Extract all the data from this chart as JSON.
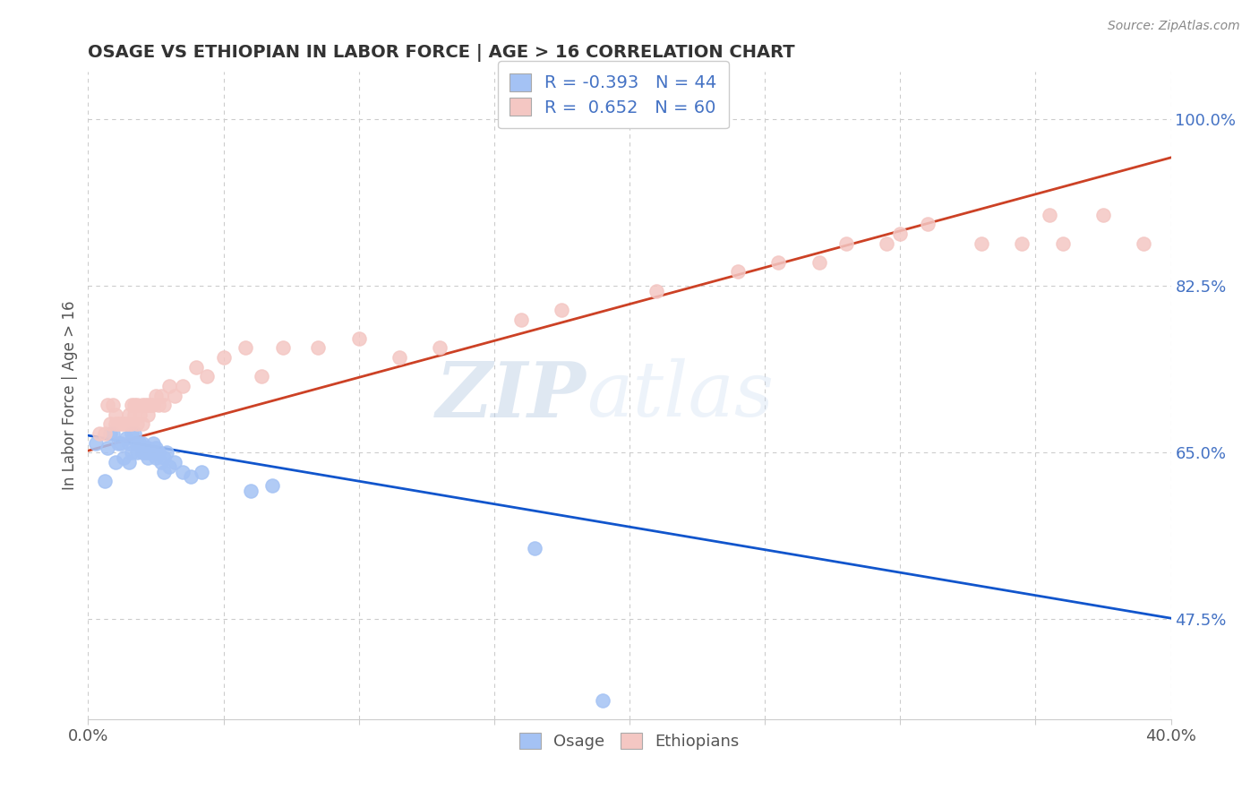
{
  "title": "OSAGE VS ETHIOPIAN IN LABOR FORCE | AGE > 16 CORRELATION CHART",
  "source_text": "Source: ZipAtlas.com",
  "ylabel": "In Labor Force | Age > 16",
  "xlim": [
    0.0,
    0.4
  ],
  "ylim": [
    0.37,
    1.05
  ],
  "y_ticks": [
    0.475,
    0.65,
    0.825,
    1.0
  ],
  "y_tick_labels": [
    "47.5%",
    "65.0%",
    "82.5%",
    "100.0%"
  ],
  "x_tick_labels": [
    "0.0%",
    "",
    "",
    "",
    "",
    "",
    "",
    "",
    "40.0%"
  ],
  "osage_R": -0.393,
  "osage_N": 44,
  "ethiopian_R": 0.652,
  "ethiopian_N": 60,
  "osage_color": "#a4c2f4",
  "ethiopian_color": "#f4c7c3",
  "osage_line_color": "#1155cc",
  "ethiopian_line_color": "#cc4125",
  "background_color": "#ffffff",
  "grid_color": "#cccccc",
  "watermark_zip": "ZIP",
  "watermark_atlas": "atlas",
  "osage_x": [
    0.003,
    0.006,
    0.007,
    0.008,
    0.009,
    0.01,
    0.011,
    0.012,
    0.013,
    0.014,
    0.015,
    0.015,
    0.016,
    0.016,
    0.017,
    0.018,
    0.018,
    0.019,
    0.02,
    0.02,
    0.021,
    0.021,
    0.022,
    0.022,
    0.022,
    0.023,
    0.024,
    0.024,
    0.025,
    0.025,
    0.026,
    0.027,
    0.028,
    0.028,
    0.029,
    0.03,
    0.032,
    0.035,
    0.038,
    0.042,
    0.06,
    0.068,
    0.165,
    0.19
  ],
  "osage_y": [
    0.66,
    0.62,
    0.655,
    0.67,
    0.67,
    0.64,
    0.66,
    0.66,
    0.645,
    0.665,
    0.64,
    0.66,
    0.65,
    0.67,
    0.67,
    0.65,
    0.66,
    0.66,
    0.65,
    0.66,
    0.655,
    0.65,
    0.645,
    0.65,
    0.655,
    0.65,
    0.66,
    0.65,
    0.645,
    0.655,
    0.65,
    0.64,
    0.63,
    0.645,
    0.65,
    0.635,
    0.64,
    0.63,
    0.625,
    0.63,
    0.61,
    0.615,
    0.55,
    0.39
  ],
  "ethiopian_x": [
    0.004,
    0.006,
    0.007,
    0.008,
    0.009,
    0.01,
    0.01,
    0.011,
    0.012,
    0.013,
    0.014,
    0.015,
    0.015,
    0.016,
    0.016,
    0.017,
    0.017,
    0.018,
    0.018,
    0.019,
    0.02,
    0.02,
    0.021,
    0.022,
    0.022,
    0.023,
    0.024,
    0.025,
    0.026,
    0.027,
    0.028,
    0.03,
    0.032,
    0.035,
    0.04,
    0.044,
    0.05,
    0.058,
    0.064,
    0.072,
    0.085,
    0.1,
    0.115,
    0.13,
    0.16,
    0.175,
    0.21,
    0.24,
    0.255,
    0.27,
    0.28,
    0.295,
    0.3,
    0.31,
    0.33,
    0.345,
    0.355,
    0.36,
    0.375,
    0.39
  ],
  "ethiopian_y": [
    0.67,
    0.67,
    0.7,
    0.68,
    0.7,
    0.68,
    0.69,
    0.68,
    0.68,
    0.68,
    0.68,
    0.68,
    0.69,
    0.68,
    0.7,
    0.69,
    0.7,
    0.68,
    0.7,
    0.69,
    0.68,
    0.7,
    0.7,
    0.69,
    0.7,
    0.7,
    0.7,
    0.71,
    0.7,
    0.71,
    0.7,
    0.72,
    0.71,
    0.72,
    0.74,
    0.73,
    0.75,
    0.76,
    0.73,
    0.76,
    0.76,
    0.77,
    0.75,
    0.76,
    0.79,
    0.8,
    0.82,
    0.84,
    0.85,
    0.85,
    0.87,
    0.87,
    0.88,
    0.89,
    0.87,
    0.87,
    0.9,
    0.87,
    0.9,
    0.87
  ],
  "osage_line_y0": 0.668,
  "osage_line_y1": 0.476,
  "ethiopian_line_y0": 0.652,
  "ethiopian_line_y1": 0.96
}
